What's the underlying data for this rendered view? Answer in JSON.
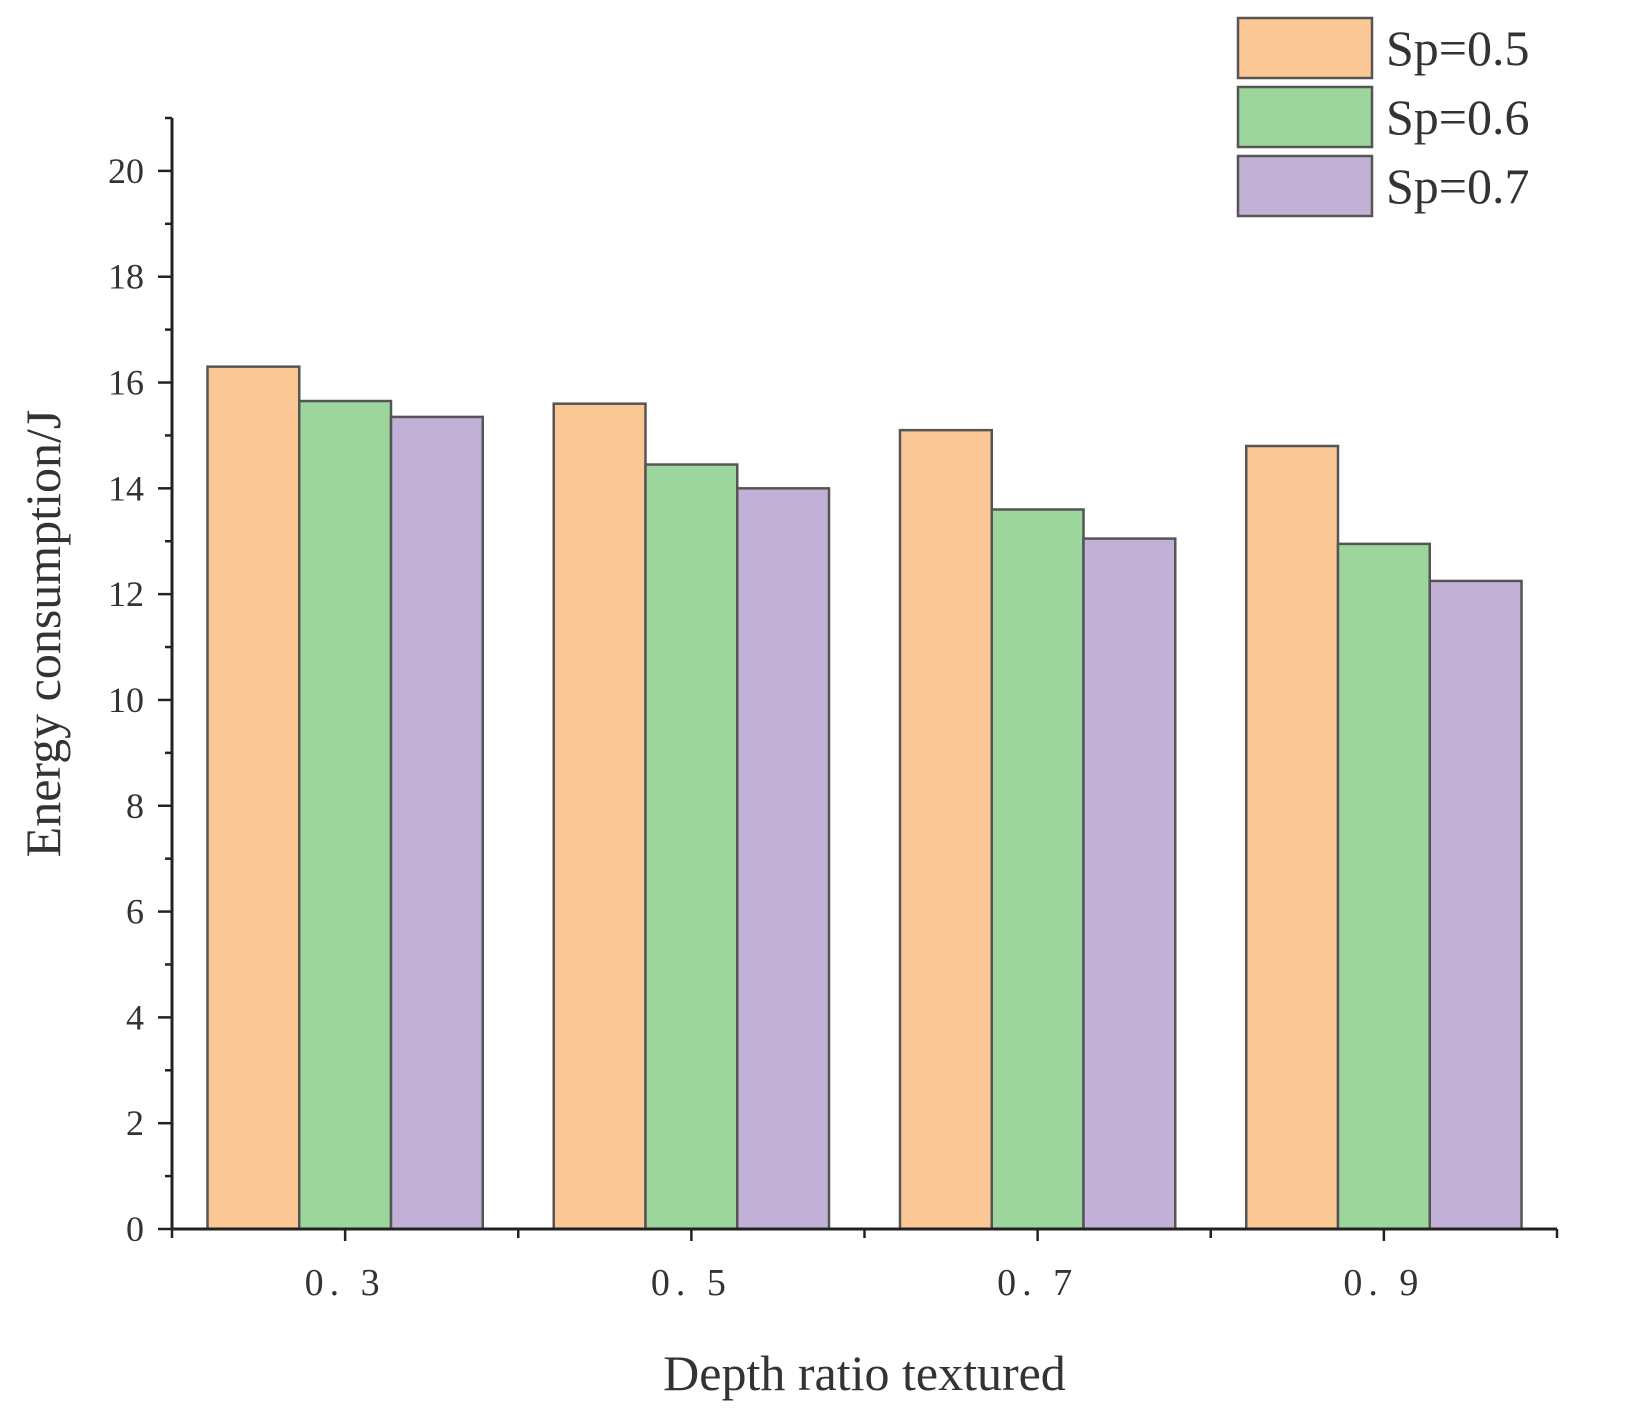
{
  "chart_data": {
    "type": "bar",
    "title": "",
    "xlabel": "Depth ratio textured",
    "ylabel": "Energy consumption/J",
    "categories": [
      "0. 3",
      "0. 5",
      "0. 7",
      "0. 9"
    ],
    "series": [
      {
        "name": "Sp=0.5",
        "color": "#FBC795",
        "values": [
          16.3,
          15.6,
          15.1,
          14.8
        ]
      },
      {
        "name": "Sp=0.6",
        "color": "#9DD69C",
        "values": [
          15.65,
          14.45,
          13.6,
          12.95
        ]
      },
      {
        "name": "Sp=0.7",
        "color": "#C2B1D6",
        "values": [
          15.35,
          14.0,
          13.05,
          12.25
        ]
      }
    ],
    "ylim": [
      0,
      21
    ],
    "yticks": [
      0,
      2,
      4,
      6,
      8,
      10,
      12,
      14,
      16,
      18,
      20
    ],
    "yticks_labels": [
      "0",
      "2",
      "4",
      "6",
      "8",
      "10",
      "12",
      "14",
      "16",
      "18",
      "20"
    ],
    "grid": false,
    "legend": "top-right"
  }
}
